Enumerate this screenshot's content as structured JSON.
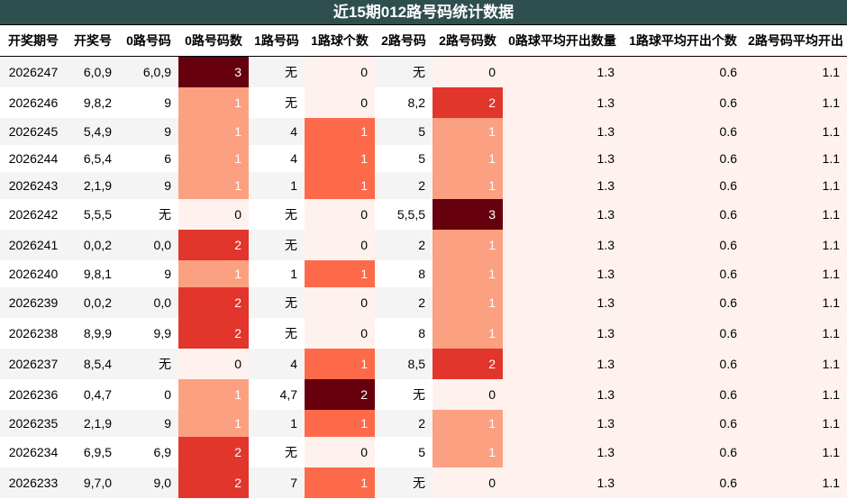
{
  "title": "近15期012路号码统计数据",
  "columns": [
    "开奖期号",
    "开奖号",
    "0路号码",
    "0路号码数",
    "1路号码",
    "1路球个数",
    "2路号码",
    "2路号码数",
    "0路球平均开出数量",
    "1路球平均开出个数",
    "2路号码平均开出"
  ],
  "rows": [
    [
      "2026247",
      "6,0,9",
      "6,0,9",
      "3",
      "无",
      "0",
      "无",
      "0",
      "1.3",
      "0.6",
      "1.1"
    ],
    [
      "2026246",
      "9,8,2",
      "9",
      "1",
      "无",
      "0",
      "8,2",
      "2",
      "1.3",
      "0.6",
      "1.1"
    ],
    [
      "2026245",
      "5,4,9",
      "9",
      "1",
      "4",
      "1",
      "5",
      "1",
      "1.3",
      "0.6",
      "1.1"
    ],
    [
      "2026244",
      "6,5,4",
      "6",
      "1",
      "4",
      "1",
      "5",
      "1",
      "1.3",
      "0.6",
      "1.1"
    ],
    [
      "2026243",
      "2,1,9",
      "9",
      "1",
      "1",
      "1",
      "2",
      "1",
      "1.3",
      "0.6",
      "1.1"
    ],
    [
      "2026242",
      "5,5,5",
      "无",
      "0",
      "无",
      "0",
      "5,5,5",
      "3",
      "1.3",
      "0.6",
      "1.1"
    ],
    [
      "2026241",
      "0,0,2",
      "0,0",
      "2",
      "无",
      "0",
      "2",
      "1",
      "1.3",
      "0.6",
      "1.1"
    ],
    [
      "2026240",
      "9,8,1",
      "9",
      "1",
      "1",
      "1",
      "8",
      "1",
      "1.3",
      "0.6",
      "1.1"
    ],
    [
      "2026239",
      "0,0,2",
      "0,0",
      "2",
      "无",
      "0",
      "2",
      "1",
      "1.3",
      "0.6",
      "1.1"
    ],
    [
      "2026238",
      "8,9,9",
      "9,9",
      "2",
      "无",
      "0",
      "8",
      "1",
      "1.3",
      "0.6",
      "1.1"
    ],
    [
      "2026237",
      "8,5,4",
      "无",
      "0",
      "4",
      "1",
      "8,5",
      "2",
      "1.3",
      "0.6",
      "1.1"
    ],
    [
      "2026236",
      "0,4,7",
      "0",
      "1",
      "4,7",
      "2",
      "无",
      "0",
      "1.3",
      "0.6",
      "1.1"
    ],
    [
      "2026235",
      "2,1,9",
      "9",
      "1",
      "1",
      "1",
      "2",
      "1",
      "1.3",
      "0.6",
      "1.1"
    ],
    [
      "2026234",
      "6,9,5",
      "6,9",
      "2",
      "无",
      "0",
      "5",
      "1",
      "1.3",
      "0.6",
      "1.1"
    ],
    [
      "2026233",
      "9,7,0",
      "9,0",
      "2",
      "7",
      "1",
      "无",
      "0",
      "1.3",
      "0.6",
      "1.1"
    ]
  ],
  "heat_colors": {
    "0": "#fff2ee",
    "1": "#fca082",
    "2": "#e2352c",
    "3": "#67000d",
    "2_in_1路": "#67000d",
    "1_in_1路": "#fd6a4a"
  },
  "text_colors": {
    "light": "#ffffff",
    "dark": "#000000"
  }
}
